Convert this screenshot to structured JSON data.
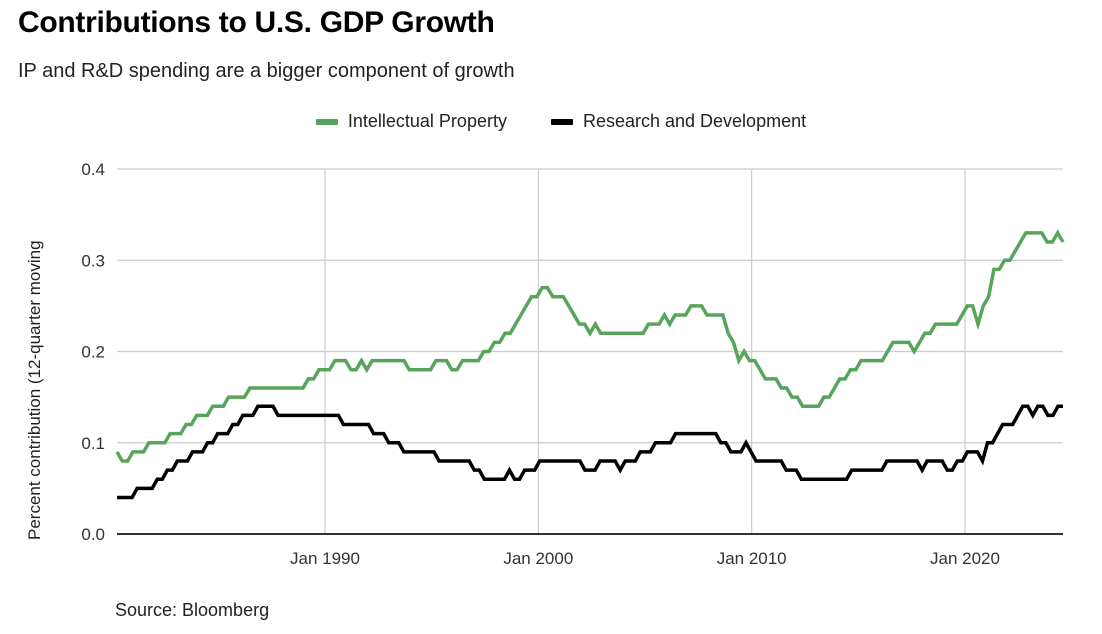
{
  "chart_data": {
    "type": "line",
    "title": "Contributions to U.S. GDP Growth",
    "subtitle": "IP and R&D spending are a bigger component of growth",
    "xlabel": "",
    "ylabel": "Percent contribution (12-quarter moving",
    "source": "Source: Bloomberg",
    "legend_position": "top-center",
    "grid": true,
    "ylim": [
      0,
      0.4
    ],
    "y_ticks": [
      {
        "value": 0.0,
        "label": "0.0"
      },
      {
        "value": 0.1,
        "label": "0.1"
      },
      {
        "value": 0.2,
        "label": "0.2"
      },
      {
        "value": 0.3,
        "label": "0.3"
      },
      {
        "value": 0.4,
        "label": "0.4"
      }
    ],
    "xlim": [
      1980.25,
      2024.5
    ],
    "x_ticks": [
      {
        "value": 1990,
        "label": "Jan 1990"
      },
      {
        "value": 2000,
        "label": "Jan 2000"
      },
      {
        "value": 2010,
        "label": "Jan 2010"
      },
      {
        "value": 2020,
        "label": "Jan 2020"
      }
    ],
    "x_start": 1980.25,
    "x_step": 0.25,
    "series": [
      {
        "name": "Intellectual Property",
        "color": "#57a55a",
        "values": [
          0.09,
          0.08,
          0.08,
          0.09,
          0.09,
          0.09,
          0.1,
          0.1,
          0.1,
          0.1,
          0.11,
          0.11,
          0.11,
          0.12,
          0.12,
          0.13,
          0.13,
          0.13,
          0.14,
          0.14,
          0.14,
          0.15,
          0.15,
          0.15,
          0.15,
          0.16,
          0.16,
          0.16,
          0.16,
          0.16,
          0.16,
          0.16,
          0.16,
          0.16,
          0.16,
          0.16,
          0.17,
          0.17,
          0.18,
          0.18,
          0.18,
          0.19,
          0.19,
          0.19,
          0.18,
          0.18,
          0.19,
          0.18,
          0.19,
          0.19,
          0.19,
          0.19,
          0.19,
          0.19,
          0.19,
          0.18,
          0.18,
          0.18,
          0.18,
          0.18,
          0.19,
          0.19,
          0.19,
          0.18,
          0.18,
          0.19,
          0.19,
          0.19,
          0.19,
          0.2,
          0.2,
          0.21,
          0.21,
          0.22,
          0.22,
          0.23,
          0.24,
          0.25,
          0.26,
          0.26,
          0.27,
          0.27,
          0.26,
          0.26,
          0.26,
          0.25,
          0.24,
          0.23,
          0.23,
          0.22,
          0.23,
          0.22,
          0.22,
          0.22,
          0.22,
          0.22,
          0.22,
          0.22,
          0.22,
          0.22,
          0.23,
          0.23,
          0.23,
          0.24,
          0.23,
          0.24,
          0.24,
          0.24,
          0.25,
          0.25,
          0.25,
          0.24,
          0.24,
          0.24,
          0.24,
          0.22,
          0.21,
          0.19,
          0.2,
          0.19,
          0.19,
          0.18,
          0.17,
          0.17,
          0.17,
          0.16,
          0.16,
          0.15,
          0.15,
          0.14,
          0.14,
          0.14,
          0.14,
          0.15,
          0.15,
          0.16,
          0.17,
          0.17,
          0.18,
          0.18,
          0.19,
          0.19,
          0.19,
          0.19,
          0.19,
          0.2,
          0.21,
          0.21,
          0.21,
          0.21,
          0.2,
          0.21,
          0.22,
          0.22,
          0.23,
          0.23,
          0.23,
          0.23,
          0.23,
          0.24,
          0.25,
          0.25,
          0.23,
          0.25,
          0.26,
          0.29,
          0.29,
          0.3,
          0.3,
          0.31,
          0.32,
          0.33,
          0.33,
          0.33,
          0.33,
          0.32,
          0.32,
          0.33,
          0.32
        ]
      },
      {
        "name": "Research and Development",
        "color": "#000000",
        "values": [
          0.04,
          0.04,
          0.04,
          0.04,
          0.05,
          0.05,
          0.05,
          0.05,
          0.06,
          0.06,
          0.07,
          0.07,
          0.08,
          0.08,
          0.08,
          0.09,
          0.09,
          0.09,
          0.1,
          0.1,
          0.11,
          0.11,
          0.11,
          0.12,
          0.12,
          0.13,
          0.13,
          0.13,
          0.14,
          0.14,
          0.14,
          0.14,
          0.13,
          0.13,
          0.13,
          0.13,
          0.13,
          0.13,
          0.13,
          0.13,
          0.13,
          0.13,
          0.13,
          0.13,
          0.13,
          0.12,
          0.12,
          0.12,
          0.12,
          0.12,
          0.12,
          0.11,
          0.11,
          0.11,
          0.1,
          0.1,
          0.1,
          0.09,
          0.09,
          0.09,
          0.09,
          0.09,
          0.09,
          0.09,
          0.08,
          0.08,
          0.08,
          0.08,
          0.08,
          0.08,
          0.08,
          0.07,
          0.07,
          0.06,
          0.06,
          0.06,
          0.06,
          0.06,
          0.07,
          0.06,
          0.06,
          0.07,
          0.07,
          0.07,
          0.08,
          0.08,
          0.08,
          0.08,
          0.08,
          0.08,
          0.08,
          0.08,
          0.08,
          0.07,
          0.07,
          0.07,
          0.08,
          0.08,
          0.08,
          0.08,
          0.07,
          0.08,
          0.08,
          0.08,
          0.09,
          0.09,
          0.09,
          0.1,
          0.1,
          0.1,
          0.1,
          0.11,
          0.11,
          0.11,
          0.11,
          0.11,
          0.11,
          0.11,
          0.11,
          0.11,
          0.1,
          0.1,
          0.09,
          0.09,
          0.09,
          0.1,
          0.09,
          0.08,
          0.08,
          0.08,
          0.08,
          0.08,
          0.08,
          0.07,
          0.07,
          0.07,
          0.06,
          0.06,
          0.06,
          0.06,
          0.06,
          0.06,
          0.06,
          0.06,
          0.06,
          0.06,
          0.07,
          0.07,
          0.07,
          0.07,
          0.07,
          0.07,
          0.07,
          0.08,
          0.08,
          0.08,
          0.08,
          0.08,
          0.08,
          0.08,
          0.07,
          0.08,
          0.08,
          0.08,
          0.08,
          0.07,
          0.07,
          0.08,
          0.08,
          0.09,
          0.09,
          0.09,
          0.08,
          0.1,
          0.1,
          0.11,
          0.12,
          0.12,
          0.12,
          0.13,
          0.14,
          0.14,
          0.13,
          0.14,
          0.14,
          0.13,
          0.13,
          0.14,
          0.14
        ]
      }
    ]
  }
}
